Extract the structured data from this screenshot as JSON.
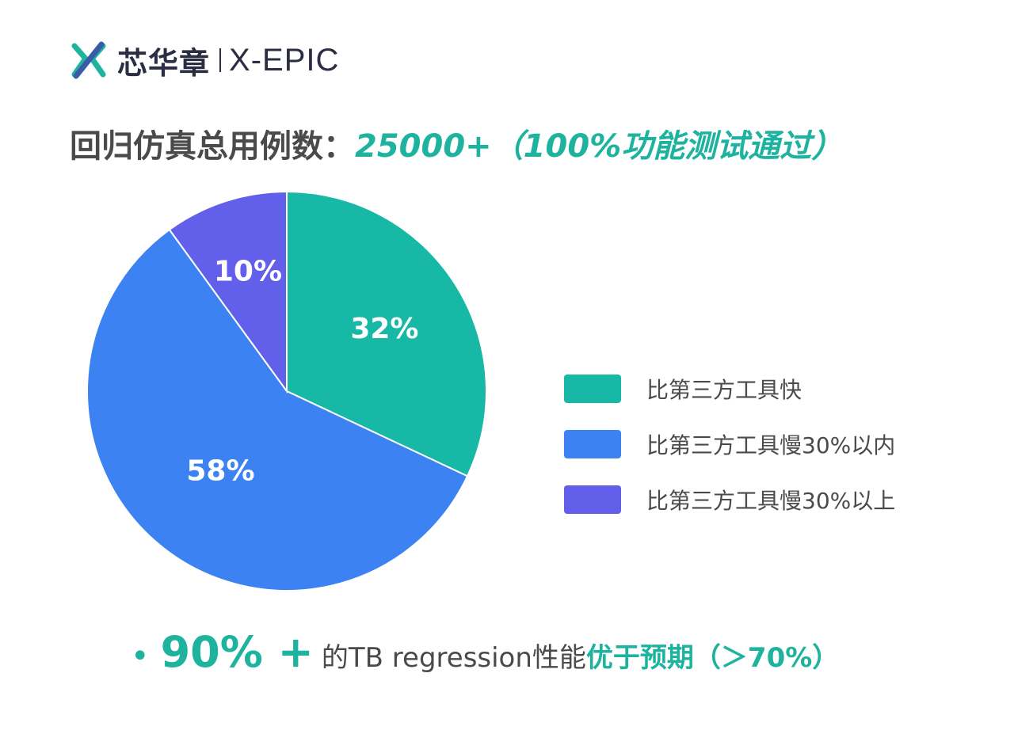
{
  "brand": {
    "name_cn": "芯华章",
    "name_en": "X-EPIC",
    "colors": {
      "teal": "#1db39f",
      "blue": "#3d82f2",
      "purple": "#6260ea",
      "text": "#4a4a4a"
    }
  },
  "headline": {
    "label": "回归仿真总用例数：",
    "value": "25000+（100%功能测试通过）"
  },
  "chart_data": {
    "type": "pie",
    "start": "top",
    "direction": "clockwise",
    "slices": [
      {
        "label": "比第三方工具快",
        "value": 32,
        "display": "32%",
        "color": "#17b8a6"
      },
      {
        "label": "比第三方工具慢30%以内",
        "value": 58,
        "display": "58%",
        "color": "#3d82f2"
      },
      {
        "label": "比第三方工具慢30%以上",
        "value": 10,
        "display": "10%",
        "color": "#6260ea"
      }
    ],
    "legend_position": "right"
  },
  "summary": {
    "highlight": "90% +",
    "text": "的TB regression性能",
    "emphasis": "优于预期（＞70%）"
  }
}
